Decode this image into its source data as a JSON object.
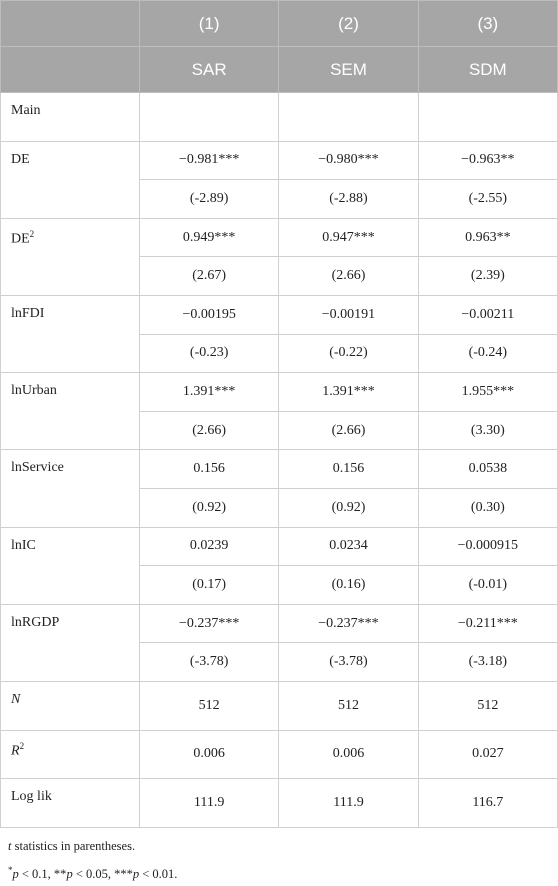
{
  "table": {
    "header": {
      "numbers": [
        "(1)",
        "(2)",
        "(3)"
      ],
      "models": [
        "SAR",
        "SEM",
        "SDM"
      ]
    },
    "rows": [
      {
        "label": "Main"
      },
      {
        "label": "DE",
        "coef": [
          "−0.981***",
          "−0.980***",
          "−0.963**"
        ],
        "t": [
          "(-2.89)",
          "(-2.88)",
          "(-2.55)"
        ]
      },
      {
        "label": [
          "DE",
          "2"
        ],
        "coef": [
          "0.949***",
          "0.947***",
          "0.963**"
        ],
        "t": [
          "(2.67)",
          "(2.66)",
          "(2.39)"
        ]
      },
      {
        "label": "lnFDI",
        "coef": [
          "−0.00195",
          "−0.00191",
          "−0.00211"
        ],
        "t": [
          "(-0.23)",
          "(-0.22)",
          "(-0.24)"
        ]
      },
      {
        "label": "lnUrban",
        "coef": [
          "1.391***",
          "1.391***",
          "1.955***"
        ],
        "t": [
          "(2.66)",
          "(2.66)",
          "(3.30)"
        ]
      },
      {
        "label": "lnService",
        "coef": [
          "0.156",
          "0.156",
          "0.0538"
        ],
        "t": [
          "(0.92)",
          "(0.92)",
          "(0.30)"
        ]
      },
      {
        "label": "lnIC",
        "coef": [
          "0.0239",
          "0.0234",
          "−0.000915"
        ],
        "t": [
          "(0.17)",
          "(0.16)",
          "(-0.01)"
        ]
      },
      {
        "label": "lnRGDP",
        "coef": [
          "−0.237***",
          "−0.237***",
          "−0.211***"
        ],
        "t": [
          "(-3.78)",
          "(-3.78)",
          "(-3.18)"
        ]
      },
      {
        "label": "N",
        "label_style": "italic",
        "values": [
          "512",
          "512",
          "512"
        ]
      },
      {
        "label": [
          "R",
          "2"
        ],
        "label_style": "italic",
        "values": [
          "0.006",
          "0.006",
          "0.027"
        ]
      },
      {
        "label": "Log lik",
        "values": [
          "111.9",
          "111.9",
          "116.7"
        ]
      }
    ],
    "footnotes": [
      [
        "t",
        " statistics in parentheses."
      ],
      [
        "*",
        "p",
        " < 0.1, **",
        "p",
        " < 0.05, ***",
        "p",
        " < 0.01."
      ]
    ]
  }
}
